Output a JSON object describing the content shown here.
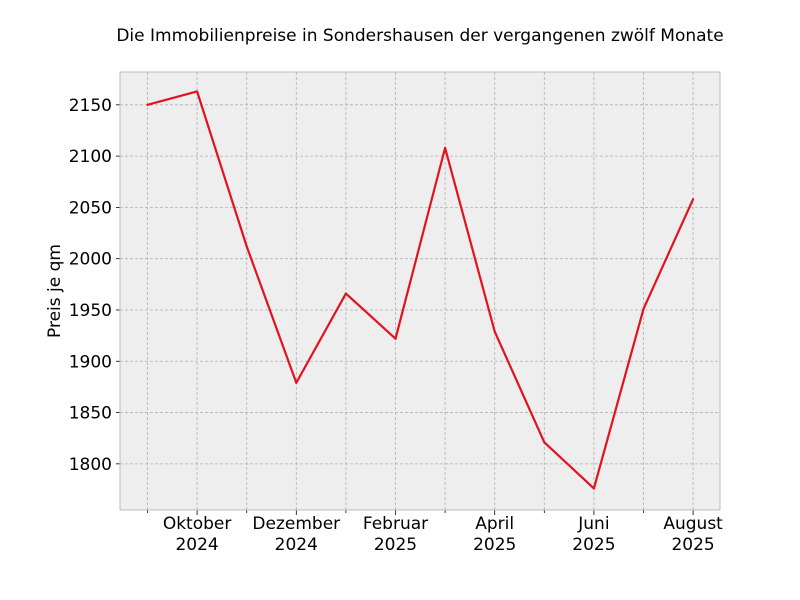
{
  "chart_data": {
    "type": "line",
    "title": "Die Immobilienpreise in Sondershausen der vergangenen zwölf Monate",
    "xlabel": "",
    "ylabel": "Preis je qm",
    "x": [
      "2024-09",
      "2024-10",
      "2024-11",
      "2024-12",
      "2025-01",
      "2025-02",
      "2025-03",
      "2025-04",
      "2025-05",
      "2025-06",
      "2025-07",
      "2025-08"
    ],
    "series": [
      {
        "values": [
          2150,
          2163,
          2012,
          1879,
          1966,
          1922,
          2108,
          1929,
          1821,
          1776,
          1951,
          2058
        ],
        "color": "#e3121f"
      }
    ],
    "x_tick_labels": [
      [
        "Oktober",
        "2024"
      ],
      [
        "Dezember",
        "2024"
      ],
      [
        "Februar",
        "2025"
      ],
      [
        "April",
        "2025"
      ],
      [
        "Juni",
        "2025"
      ],
      [
        "August",
        "2025"
      ]
    ],
    "y_ticks": [
      1800,
      1850,
      1900,
      1950,
      2000,
      2050,
      2100,
      2150
    ],
    "ylim": [
      1755,
      2182
    ],
    "grid": true,
    "background": "#eeeeee",
    "gridColor": "#b0b0b0"
  }
}
